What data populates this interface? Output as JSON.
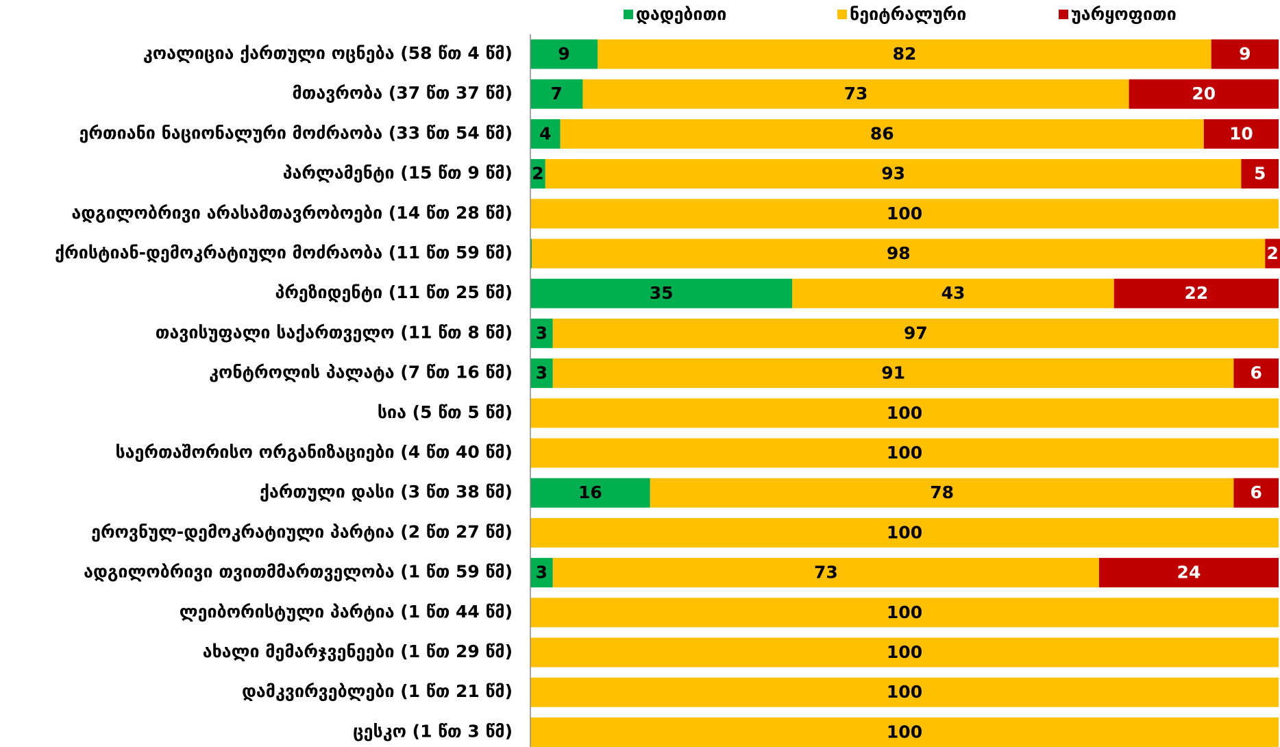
{
  "chart_data": {
    "type": "stacked-bar-horizontal",
    "categories": [
      "კოალიცია ქართული ოცნება (58 წთ 4 წმ)",
      "მთავრობა (37 წთ 37 წმ)",
      "ერთიანი ნაციონალური მოძრაობა (33 წთ 54 წმ)",
      "პარლამენტი (15 წთ 9 წმ)",
      "ადგილობრივი არასამთავრობოები (14 წთ 28 წმ)",
      "ქრისტიან-დემოკრატიული მოძრაობა (11 წთ 59 წმ)",
      "პრეზიდენტი (11 წთ 25 წმ)",
      "თავისუფალი საქართველო (11 წთ 8 წმ)",
      "კონტროლის პალატა (7 წთ 16 წმ)",
      "სია (5 წთ 5 წმ)",
      "საერთაშორისო ორგანიზაციები (4 წთ 40 წმ)",
      "ქართული დასი (3 წთ 38 წმ)",
      "ეროვნულ-დემოკრატიული პარტია (2 წთ 27 წმ)",
      "ადგილობრივი თვითმმართველობა (1 წთ 59 წმ)",
      "ლეიბორისტული პარტია (1 წთ 44 წმ)",
      "ახალი მემარჯვენეები (1 წთ 29 წმ)",
      "დამკვირვებლები (1 წთ 21 წმ)",
      "ცესკო (1 წთ 3 წმ)"
    ],
    "series": [
      {
        "name": "დადებითი",
        "color": "#00b050",
        "values": [
          9,
          7,
          4,
          2,
          0,
          0.2,
          35,
          3,
          3,
          0,
          0,
          16,
          0,
          3,
          0,
          0,
          0,
          0
        ]
      },
      {
        "name": "ნეიტრალური",
        "color": "#ffc000",
        "values": [
          82,
          73,
          86,
          93,
          100,
          98,
          43,
          97,
          91,
          100,
          100,
          78,
          100,
          73,
          100,
          100,
          100,
          100
        ]
      },
      {
        "name": "უარყოფითი",
        "color": "#c00000",
        "values": [
          9,
          20,
          10,
          5,
          0,
          2,
          22,
          0,
          6,
          0,
          0,
          6,
          0,
          24,
          0,
          0,
          0,
          0
        ]
      }
    ],
    "xlim": [
      0,
      100
    ],
    "legend": "top"
  }
}
